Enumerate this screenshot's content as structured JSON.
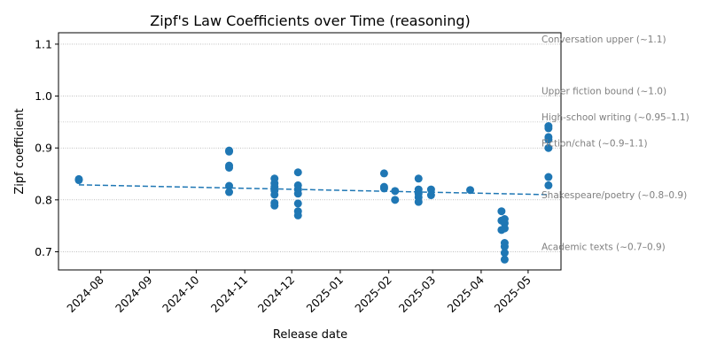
{
  "chart_data": {
    "type": "scatter",
    "title": "Zipf's Law Coefficients over Time (reasoning)",
    "xlabel": "Release date",
    "ylabel": "Zipf coefficient",
    "xlim": [
      "2024-07-05",
      "2025-05-22"
    ],
    "ylim": [
      0.665,
      1.122
    ],
    "grid": false,
    "xticks": [
      "2024-08-01",
      "2024-09-01",
      "2024-10-01",
      "2024-11-01",
      "2024-12-01",
      "2025-01-01",
      "2025-02-01",
      "2025-03-01",
      "2025-04-01",
      "2025-05-01"
    ],
    "xtick_labels": [
      "2024-08",
      "2024-09",
      "2024-10",
      "2024-11",
      "2024-12",
      "2025-01",
      "2025-02",
      "2025-03",
      "2025-04",
      "2025-05"
    ],
    "yticks": [
      0.7,
      0.8,
      0.9,
      1.0,
      1.1
    ],
    "ytick_labels": [
      "0.7",
      "0.8",
      "0.9",
      "1.0",
      "1.1"
    ],
    "colors": {
      "points": "#1f77b4",
      "trend": "#1f77b4",
      "reference": "#999999",
      "reference_text": "#808080"
    },
    "points": [
      {
        "x": "2024-07-18",
        "y": 0.84
      },
      {
        "x": "2024-07-18",
        "y": 0.838
      },
      {
        "x": "2024-10-22",
        "y": 0.895
      },
      {
        "x": "2024-10-22",
        "y": 0.893
      },
      {
        "x": "2024-10-22",
        "y": 0.866
      },
      {
        "x": "2024-10-22",
        "y": 0.862
      },
      {
        "x": "2024-10-22",
        "y": 0.827
      },
      {
        "x": "2024-10-22",
        "y": 0.815
      },
      {
        "x": "2024-11-20",
        "y": 0.841
      },
      {
        "x": "2024-11-20",
        "y": 0.832
      },
      {
        "x": "2024-11-20",
        "y": 0.825
      },
      {
        "x": "2024-11-20",
        "y": 0.818
      },
      {
        "x": "2024-11-20",
        "y": 0.81
      },
      {
        "x": "2024-11-20",
        "y": 0.794
      },
      {
        "x": "2024-11-20",
        "y": 0.789
      },
      {
        "x": "2024-12-05",
        "y": 0.853
      },
      {
        "x": "2024-12-05",
        "y": 0.828
      },
      {
        "x": "2024-12-05",
        "y": 0.82
      },
      {
        "x": "2024-12-05",
        "y": 0.812
      },
      {
        "x": "2024-12-05",
        "y": 0.793
      },
      {
        "x": "2024-12-05",
        "y": 0.778
      },
      {
        "x": "2024-12-05",
        "y": 0.77
      },
      {
        "x": "2025-01-29",
        "y": 0.851
      },
      {
        "x": "2025-01-29",
        "y": 0.825
      },
      {
        "x": "2025-01-29",
        "y": 0.822
      },
      {
        "x": "2025-02-05",
        "y": 0.817
      },
      {
        "x": "2025-02-05",
        "y": 0.8
      },
      {
        "x": "2025-02-20",
        "y": 0.841
      },
      {
        "x": "2025-02-20",
        "y": 0.82
      },
      {
        "x": "2025-02-20",
        "y": 0.812
      },
      {
        "x": "2025-02-20",
        "y": 0.805
      },
      {
        "x": "2025-02-20",
        "y": 0.796
      },
      {
        "x": "2025-02-28",
        "y": 0.82
      },
      {
        "x": "2025-02-28",
        "y": 0.809
      },
      {
        "x": "2025-03-25",
        "y": 0.819
      },
      {
        "x": "2025-04-14",
        "y": 0.778
      },
      {
        "x": "2025-04-14",
        "y": 0.76
      },
      {
        "x": "2025-04-14",
        "y": 0.742
      },
      {
        "x": "2025-04-16",
        "y": 0.763
      },
      {
        "x": "2025-04-16",
        "y": 0.755
      },
      {
        "x": "2025-04-16",
        "y": 0.745
      },
      {
        "x": "2025-04-16",
        "y": 0.717
      },
      {
        "x": "2025-04-16",
        "y": 0.71
      },
      {
        "x": "2025-04-16",
        "y": 0.698
      },
      {
        "x": "2025-04-16",
        "y": 0.685
      },
      {
        "x": "2025-05-14",
        "y": 0.942
      },
      {
        "x": "2025-05-14",
        "y": 0.938
      },
      {
        "x": "2025-05-14",
        "y": 0.921
      },
      {
        "x": "2025-05-14",
        "y": 0.916
      },
      {
        "x": "2025-05-14",
        "y": 0.9
      },
      {
        "x": "2025-05-14",
        "y": 0.844
      },
      {
        "x": "2025-05-14",
        "y": 0.828
      }
    ],
    "trend": {
      "style": "dashed",
      "start": {
        "x": "2024-07-18",
        "y": 0.829
      },
      "end": {
        "x": "2025-05-14",
        "y": 0.81
      }
    },
    "reference_lines": [
      {
        "y": 1.1,
        "label": "Conversation upper (~1.1)",
        "label_y": 1.11
      },
      {
        "y": 1.0,
        "label": "Upper fiction bound (~1.0)",
        "label_y": 1.01
      },
      {
        "y": 0.95,
        "label": "High-school writing (~0.95–1.1)",
        "label_y": 0.96
      },
      {
        "y": 0.9,
        "label": "Fiction/chat (~0.9–1.1)",
        "label_y": 0.91
      },
      {
        "y": 0.8,
        "label": "Shakespeare/poetry (~0.8–0.9)",
        "label_y": 0.81
      },
      {
        "y": 0.7,
        "label": "Academic texts (~0.7–0.9)",
        "label_y": 0.71
      }
    ]
  }
}
